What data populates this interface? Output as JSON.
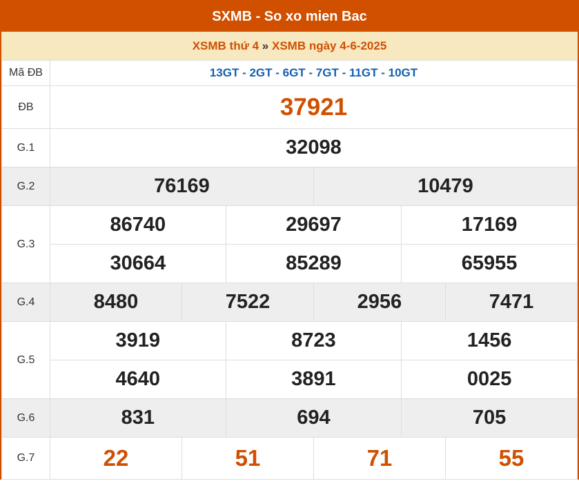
{
  "title": "SXMB - So xo mien Bac",
  "breadcrumb": {
    "link1": "XSMB thứ 4",
    "sep": "»",
    "link2": "XSMB ngày 4-6-2025"
  },
  "rows": {
    "ma_db": {
      "label": "Mã ĐB",
      "value": "13GT - 2GT - 6GT - 7GT - 11GT - 10GT"
    },
    "db": {
      "label": "ĐB",
      "value": "37921"
    },
    "g1": {
      "label": "G.1",
      "values": [
        "32098"
      ]
    },
    "g2": {
      "label": "G.2",
      "values": [
        "76169",
        "10479"
      ]
    },
    "g3": {
      "label": "G.3",
      "values": [
        "86740",
        "29697",
        "17169",
        "30664",
        "85289",
        "65955"
      ]
    },
    "g4": {
      "label": "G.4",
      "values": [
        "8480",
        "7522",
        "2956",
        "7471"
      ]
    },
    "g5": {
      "label": "G.5",
      "values": [
        "3919",
        "8723",
        "1456",
        "4640",
        "3891",
        "0025"
      ]
    },
    "g6": {
      "label": "G.6",
      "values": [
        "831",
        "694",
        "705"
      ]
    },
    "g7": {
      "label": "G.7",
      "values": [
        "22",
        "51",
        "71",
        "55"
      ]
    }
  },
  "colors": {
    "brand": "#d05000",
    "code": "#1560b0",
    "subheader_bg": "#f8e8c0"
  }
}
